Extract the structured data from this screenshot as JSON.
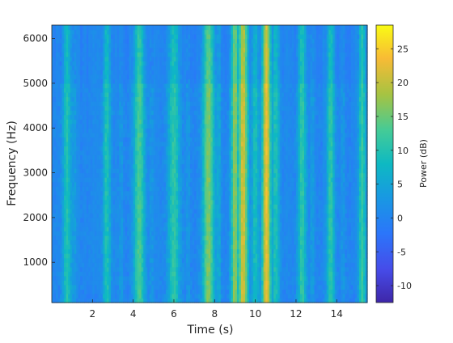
{
  "chart_data": {
    "type": "heatmap",
    "xlabel": "Time (s)",
    "ylabel": "Frequency (Hz)",
    "colorbar_label": "Power (dB)",
    "xlim": [
      0,
      15.5
    ],
    "ylim": [
      100,
      6300
    ],
    "clim": [
      -12.5,
      28.5
    ],
    "xticks": [
      2,
      4,
      6,
      8,
      10,
      12,
      14
    ],
    "yticks": [
      1000,
      2000,
      3000,
      4000,
      5000,
      6000
    ],
    "cticks": [
      -10,
      -5,
      0,
      5,
      10,
      15,
      20,
      25
    ],
    "colormap": "parula",
    "background_level_db": 0,
    "low_frequency_band": {
      "freq_range_hz": [
        100,
        450
      ],
      "level_db": -7
    },
    "events": [
      {
        "t": 0.75,
        "width": 0.22,
        "level_db": 10
      },
      {
        "t": 1.1,
        "width": 0.12,
        "level_db": 4
      },
      {
        "t": 2.7,
        "width": 0.2,
        "level_db": 10
      },
      {
        "t": 3.4,
        "width": 0.12,
        "level_db": 3
      },
      {
        "t": 4.3,
        "width": 0.28,
        "level_db": 13
      },
      {
        "t": 4.9,
        "width": 0.1,
        "level_db": 3
      },
      {
        "t": 6.0,
        "width": 0.3,
        "level_db": 11
      },
      {
        "t": 6.7,
        "width": 0.1,
        "level_db": 3
      },
      {
        "t": 7.7,
        "width": 0.3,
        "level_db": 16
      },
      {
        "t": 8.2,
        "width": 0.12,
        "level_db": 6
      },
      {
        "t": 9.0,
        "width": 0.2,
        "level_db": 17
      },
      {
        "t": 9.4,
        "width": 0.25,
        "level_db": 21
      },
      {
        "t": 10.0,
        "width": 0.2,
        "level_db": 9
      },
      {
        "t": 10.55,
        "width": 0.22,
        "level_db": 23
      },
      {
        "t": 11.0,
        "width": 0.2,
        "level_db": 10
      },
      {
        "t": 12.3,
        "width": 0.22,
        "level_db": 11
      },
      {
        "t": 12.8,
        "width": 0.1,
        "level_db": 4
      },
      {
        "t": 13.7,
        "width": 0.2,
        "level_db": 11
      },
      {
        "t": 14.3,
        "width": 0.1,
        "level_db": 3
      },
      {
        "t": 15.25,
        "width": 0.18,
        "level_db": 12
      }
    ]
  }
}
